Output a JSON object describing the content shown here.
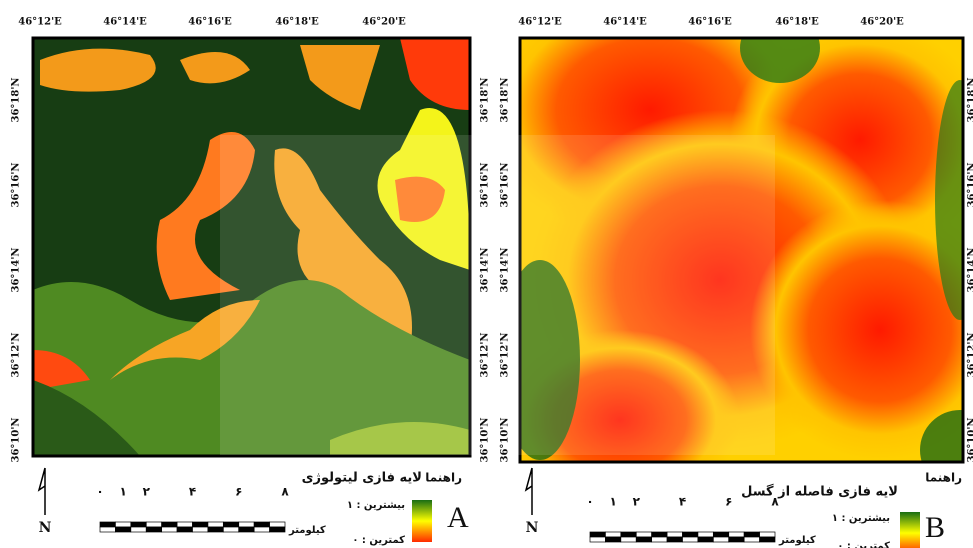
{
  "panels": [
    {
      "letter": "A",
      "top_labels": [
        "46°12'E",
        "46°14'E",
        "46°16'E",
        "46°18'E",
        "46°20'E"
      ],
      "left_labels": [
        "36°18'N",
        "36°16'N",
        "36°14'N",
        "36°12'N",
        "36°10'N"
      ],
      "right_labels": [
        "36°18'N",
        "36°16'N",
        "36°14'N",
        "36°12'N",
        "36°10'N"
      ],
      "legend": {
        "heading": "راهنما",
        "title": "لایه فازی لیتولوژی",
        "max": "بیشترین : ۱",
        "min": "کمترین : ۰"
      },
      "scale": {
        "ticks": [
          "۰",
          "۱",
          "۲",
          "۴",
          "۶",
          "۸"
        ],
        "unit": "کیلومتر"
      },
      "north": "N"
    },
    {
      "letter": "B",
      "top_labels": [
        "46°12'E",
        "46°14'E",
        "46°16'E",
        "46°18'E",
        "46°20'E"
      ],
      "left_labels": [
        "36°18'N",
        "36°16'N",
        "36°14'N",
        "36°12'N",
        "36°10'N"
      ],
      "right_labels": [
        "36°18'N",
        "36°16'N",
        "36°14'N",
        "36°12'N",
        "36°10'N"
      ],
      "legend": {
        "heading": "راهنما",
        "title": "لایه فازی فاصله از گسل",
        "max": "بیشترین : ۱",
        "min": "کمترین : ۰"
      },
      "scale": {
        "ticks": [
          "۰",
          "۱",
          "۲",
          "۴",
          "۶",
          "۸"
        ],
        "unit": "کیلومتر"
      },
      "north": "N"
    }
  ]
}
